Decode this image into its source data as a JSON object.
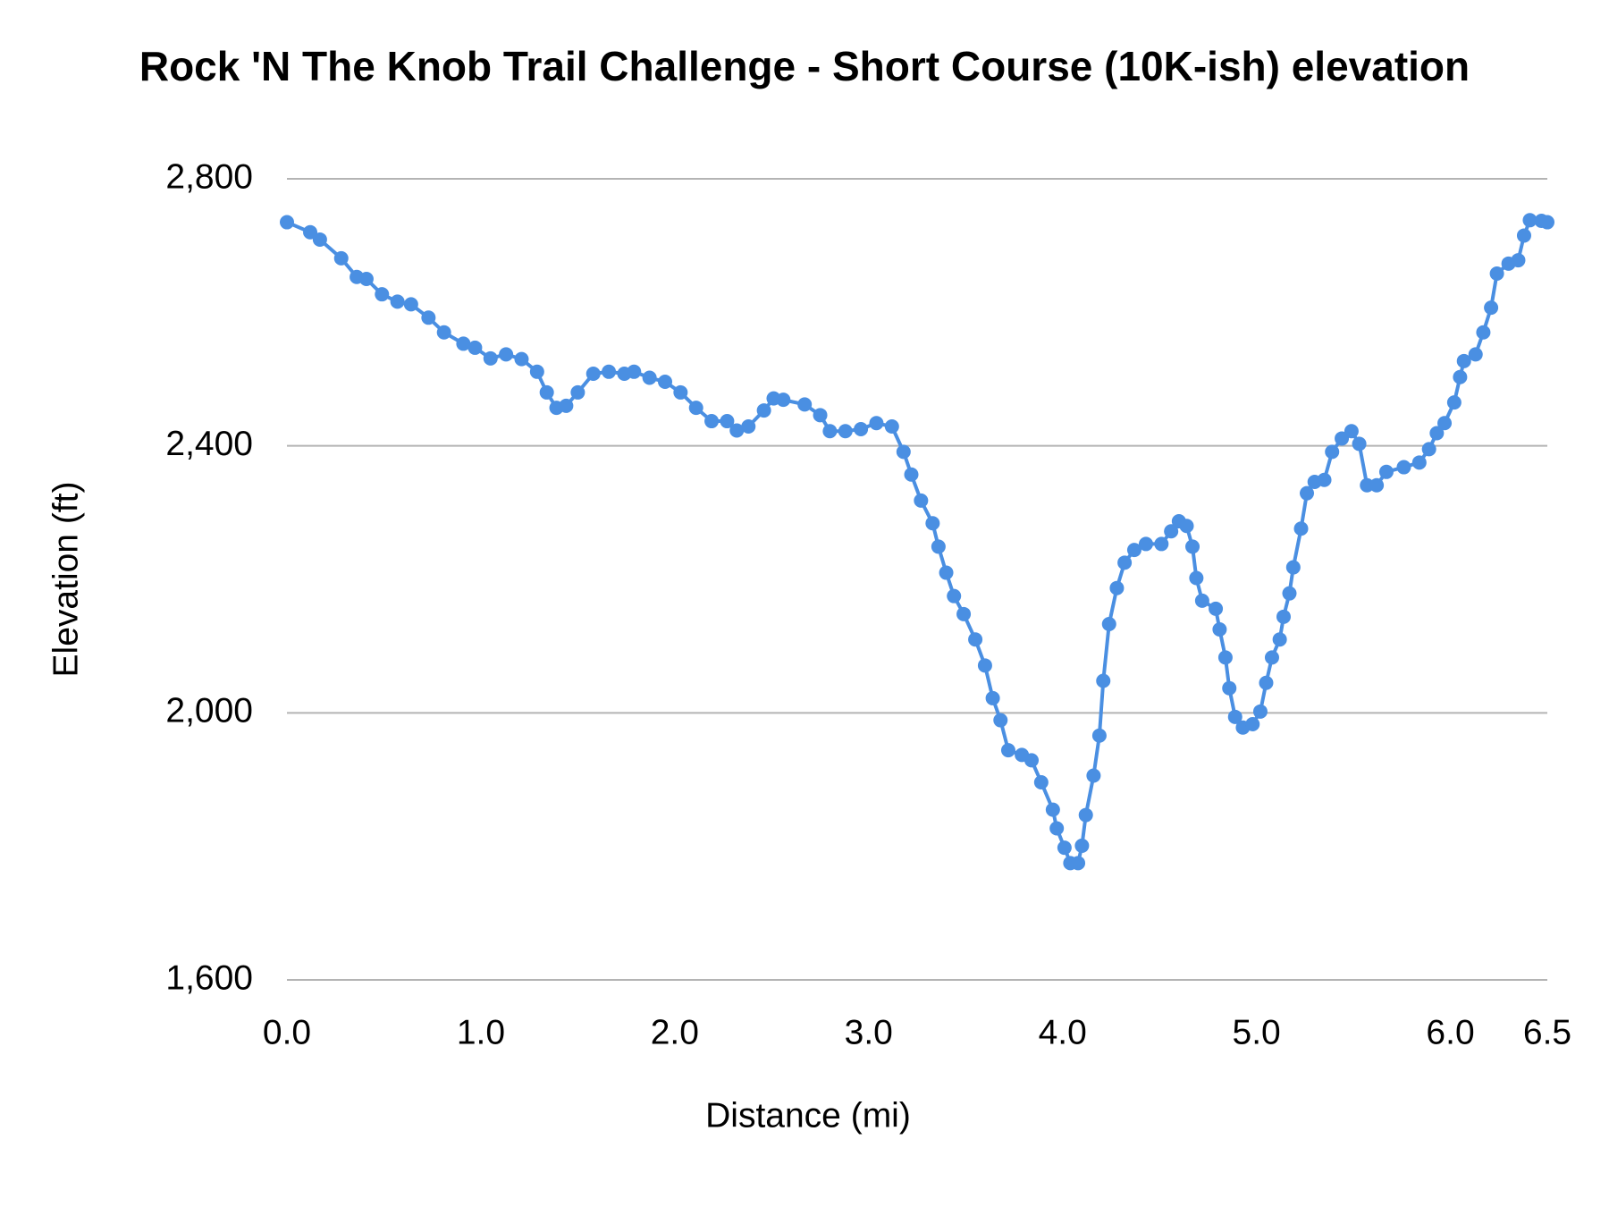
{
  "chart_data": {
    "type": "line",
    "title": "Rock 'N The Knob Trail Challenge - Short Course (10K-ish) elevation",
    "x_label": "Distance (mi)",
    "y_label": "Elevation (ft)",
    "color": "#4a8fe2",
    "grid": true,
    "xlim": [
      0,
      6.5
    ],
    "ylim": [
      1600,
      2800
    ],
    "xticks": [
      {
        "value": 0,
        "label": "0.0"
      },
      {
        "value": 1,
        "label": "1.0"
      },
      {
        "value": 2,
        "label": "2.0"
      },
      {
        "value": 3,
        "label": "3.0"
      },
      {
        "value": 4,
        "label": "4.0"
      },
      {
        "value": 5,
        "label": "5.0"
      },
      {
        "value": 6,
        "label": "6.0"
      },
      6.5
    ],
    "yticks": [
      {
        "value": 1600,
        "label": "1,600"
      },
      {
        "value": 2000,
        "label": "2,000"
      },
      {
        "value": 2400,
        "label": "2,400"
      },
      {
        "value": 2800,
        "label": "2,800"
      }
    ],
    "x": [
      0,
      0.12,
      0.17,
      0.28,
      0.36,
      0.41,
      0.49,
      0.57,
      0.64,
      0.73,
      0.81,
      0.91,
      0.97,
      1.05,
      1.13,
      1.21,
      1.29,
      1.34,
      1.39,
      1.44,
      1.5,
      1.58,
      1.66,
      1.74,
      1.79,
      1.87,
      1.95,
      2.03,
      2.11,
      2.19,
      2.27,
      2.32,
      2.38,
      2.46,
      2.51,
      2.56,
      2.67,
      2.75,
      2.8,
      2.88,
      2.96,
      3.04,
      3.12,
      3.18,
      3.22,
      3.27,
      3.33,
      3.36,
      3.4,
      3.44,
      3.49,
      3.55,
      3.6,
      3.64,
      3.68,
      3.72,
      3.79,
      3.84,
      3.89,
      3.95,
      3.97,
      4.01,
      4.04,
      4.08,
      4.1,
      4.12,
      4.16,
      4.19,
      4.21,
      4.24,
      4.28,
      4.32,
      4.37,
      4.43,
      4.51,
      4.56,
      4.6,
      4.64,
      4.67,
      4.69,
      4.72,
      4.79,
      4.81,
      4.84,
      4.86,
      4.89,
      4.93,
      4.98,
      5.02,
      5.05,
      5.08,
      5.12,
      5.14,
      5.17,
      5.19,
      5.23,
      5.26,
      5.3,
      5.35,
      5.39,
      5.44,
      5.49,
      5.53,
      5.57,
      5.62,
      5.67,
      5.76,
      5.84,
      5.89,
      5.93,
      5.97,
      6.02,
      6.05,
      6.07,
      6.13,
      6.17,
      6.21,
      6.24,
      6.3,
      6.35,
      6.38,
      6.41,
      6.47,
      6.5
    ],
    "values": [
      2735,
      2720,
      2709,
      2681,
      2653,
      2650,
      2627,
      2616,
      2612,
      2592,
      2570,
      2553,
      2547,
      2531,
      2537,
      2530,
      2511,
      2480,
      2457,
      2460,
      2480,
      2508,
      2511,
      2508,
      2511,
      2502,
      2496,
      2480,
      2457,
      2437,
      2437,
      2423,
      2429,
      2453,
      2471,
      2469,
      2462,
      2446,
      2422,
      2422,
      2425,
      2434,
      2429,
      2391,
      2357,
      2318,
      2284,
      2249,
      2210,
      2175,
      2148,
      2110,
      2071,
      2022,
      1989,
      1944,
      1937,
      1929,
      1896,
      1855,
      1827,
      1798,
      1775,
      1775,
      1801,
      1847,
      1906,
      1966,
      2048,
      2133,
      2187,
      2225,
      2244,
      2253,
      2253,
      2272,
      2287,
      2280,
      2249,
      2202,
      2168,
      2156,
      2125,
      2083,
      2037,
      1994,
      1978,
      1983,
      2002,
      2045,
      2083,
      2110,
      2144,
      2179,
      2218,
      2276,
      2329,
      2346,
      2349,
      2391,
      2411,
      2422,
      2403,
      2341,
      2341,
      2361,
      2368,
      2375,
      2395,
      2419,
      2434,
      2465,
      2503,
      2527,
      2537,
      2570,
      2607,
      2658,
      2673,
      2678,
      2715,
      2738,
      2737,
      2735
    ]
  }
}
